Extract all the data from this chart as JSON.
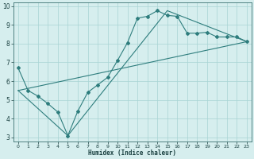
{
  "xlabel": "Humidex (Indice chaleur)",
  "xlim": [
    -0.5,
    23.5
  ],
  "ylim": [
    2.8,
    10.2
  ],
  "xticks": [
    0,
    1,
    2,
    3,
    4,
    5,
    6,
    7,
    8,
    9,
    10,
    11,
    12,
    13,
    14,
    15,
    16,
    17,
    18,
    19,
    20,
    21,
    22,
    23
  ],
  "yticks": [
    3,
    4,
    5,
    6,
    7,
    8,
    9,
    10
  ],
  "line_color": "#2e7d7d",
  "bg_color": "#d6eeee",
  "grid_color": "#a8d4d4",
  "line1_x": [
    0,
    1,
    2,
    3,
    4,
    5,
    6,
    7,
    8,
    9,
    10,
    11,
    12,
    13,
    14,
    15,
    16,
    17,
    18,
    19,
    20,
    21,
    22,
    23
  ],
  "line1_y": [
    6.7,
    5.5,
    5.2,
    4.8,
    4.35,
    3.1,
    4.4,
    5.4,
    5.8,
    6.2,
    7.1,
    8.05,
    9.35,
    9.45,
    9.75,
    9.5,
    9.45,
    8.55,
    8.55,
    8.6,
    8.35,
    8.35,
    8.35,
    8.1
  ],
  "line2_x": [
    0,
    23
  ],
  "line2_y": [
    5.5,
    8.1
  ],
  "line3_x": [
    0,
    5,
    15,
    23
  ],
  "line3_y": [
    5.5,
    3.1,
    9.75,
    8.1
  ]
}
